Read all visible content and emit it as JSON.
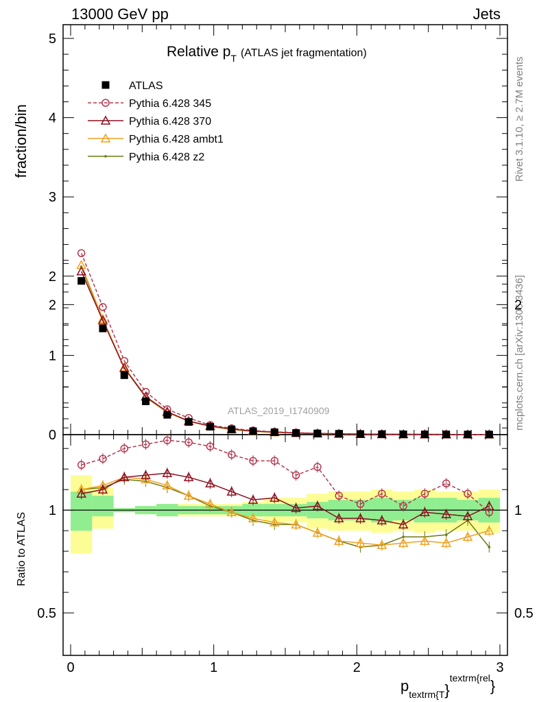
{
  "header": {
    "left": "13000 GeV pp",
    "right": "Jets"
  },
  "side_text": {
    "top": "Rivet 3.1.10, ≥ 2.7M events",
    "bottom": "mcplots.cern.ch [arXiv:1306.3436]"
  },
  "chart_data": {
    "type": "line",
    "title_main": "Relative p",
    "title_sub": "T",
    "title_rest": "(ATLAS jet fragmentation)",
    "watermark": "ATLAS_2019_I1740909",
    "ylabel": "fraction/bin",
    "ratio_ylabel": "Ratio to ATLAS",
    "xlabel_base": "p",
    "xlabel_sub": "textrm{T",
    "xlabel_brace": "}",
    "xlabel_sup": "textrm{rel",
    "xlabel_close": "}",
    "xlim": [
      0,
      3
    ],
    "ylim": [
      0,
      5.1
    ],
    "ratio_ylim": [
      0.3,
      2.3
    ],
    "x_ticks": [
      "0",
      "1",
      "2",
      "3"
    ],
    "y_ticks": [
      "0",
      "1",
      "2",
      "3",
      "4",
      "5"
    ],
    "ratio_ticks": [
      "0.5",
      "1",
      "2"
    ],
    "x": [
      0.075,
      0.225,
      0.375,
      0.525,
      0.675,
      0.825,
      0.975,
      1.125,
      1.275,
      1.425,
      1.575,
      1.725,
      1.875,
      2.025,
      2.175,
      2.325,
      2.475,
      2.625,
      2.775,
      2.925
    ],
    "series": [
      {
        "name": "ATLAS",
        "color": "#000000",
        "marker": "square",
        "values": [
          1.94,
          1.34,
          0.75,
          0.42,
          0.25,
          0.16,
          0.1,
          0.065,
          0.043,
          0.03,
          0.021,
          0.015,
          0.011,
          0.008,
          0.006,
          0.0045,
          0.0035,
          0.0028,
          0.0022,
          0.0018
        ],
        "ratio": [
          1,
          1,
          1,
          1,
          1,
          1,
          1,
          1,
          1,
          1,
          1,
          1,
          1,
          1,
          1,
          1,
          1,
          1,
          1,
          1
        ]
      },
      {
        "name": "Pythia 6.428 345",
        "color": "#b5364e",
        "marker": "circle",
        "dash": true,
        "values": [
          2.29,
          1.61,
          0.93,
          0.54,
          0.32,
          0.21,
          0.12,
          0.08,
          0.052,
          0.036,
          0.025,
          0.018,
          0.012,
          0.0085,
          0.0066,
          0.0047,
          0.0038,
          0.0032,
          0.0024,
          0.0018
        ],
        "ratio": [
          1.22,
          1.25,
          1.3,
          1.32,
          1.34,
          1.33,
          1.31,
          1.27,
          1.24,
          1.24,
          1.17,
          1.21,
          1.07,
          1.03,
          1.08,
          1.02,
          1.08,
          1.13,
          1.08,
          0.99
        ]
      },
      {
        "name": "Pythia 6.428 370",
        "color": "#8b0d1f",
        "marker": "triangle",
        "values": [
          2.06,
          1.44,
          0.84,
          0.48,
          0.29,
          0.17,
          0.11,
          0.07,
          0.045,
          0.032,
          0.021,
          0.015,
          0.0105,
          0.0077,
          0.0057,
          0.0042,
          0.0034,
          0.0027,
          0.0021,
          0.0018
        ],
        "ratio": [
          1.08,
          1.1,
          1.16,
          1.17,
          1.18,
          1.16,
          1.13,
          1.09,
          1.05,
          1.06,
          1.01,
          1.02,
          0.96,
          0.96,
          0.95,
          0.93,
          0.99,
          0.98,
          0.97,
          1.02
        ]
      },
      {
        "name": "Pythia 6.428 ambt1",
        "color": "#f0a020",
        "marker": "triangle",
        "values": [
          2.14,
          1.46,
          0.85,
          0.48,
          0.28,
          0.17,
          0.105,
          0.065,
          0.042,
          0.029,
          0.019,
          0.013,
          0.0095,
          0.0068,
          0.005,
          0.0038,
          0.003,
          0.0023,
          0.0019,
          0.0016
        ],
        "ratio": [
          1.1,
          1.12,
          1.16,
          1.15,
          1.12,
          1.07,
          1.03,
          0.99,
          0.96,
          0.94,
          0.93,
          0.89,
          0.85,
          0.84,
          0.83,
          0.84,
          0.85,
          0.84,
          0.87,
          0.9
        ]
      },
      {
        "name": "Pythia 6.428 z2",
        "color": "#6b7a10",
        "marker": "dot",
        "values": [
          2.12,
          1.45,
          0.84,
          0.47,
          0.28,
          0.17,
          0.104,
          0.064,
          0.041,
          0.028,
          0.019,
          0.013,
          0.0093,
          0.0066,
          0.005,
          0.0038,
          0.003,
          0.0025,
          0.0021,
          0.0015
        ],
        "ratio": [
          1.1,
          1.11,
          1.15,
          1.14,
          1.11,
          1.07,
          1.02,
          0.99,
          0.95,
          0.93,
          0.93,
          0.89,
          0.85,
          0.82,
          0.83,
          0.87,
          0.87,
          0.88,
          0.95,
          0.82
        ]
      }
    ],
    "ratio_band_inner": [
      [
        0.9,
        1.09
      ],
      [
        0.97,
        1.07
      ],
      [
        0.99,
        1.01
      ],
      [
        0.98,
        1.02
      ],
      [
        0.97,
        1.03
      ],
      [
        0.98,
        1.02
      ],
      [
        0.98,
        1.02
      ],
      [
        0.98,
        1.02
      ],
      [
        0.97,
        1.03
      ],
      [
        0.97,
        1.03
      ],
      [
        0.97,
        1.03
      ],
      [
        0.96,
        1.04
      ],
      [
        0.95,
        1.05
      ],
      [
        0.95,
        1.05
      ],
      [
        0.94,
        1.06
      ],
      [
        0.95,
        1.05
      ],
      [
        0.94,
        1.06
      ],
      [
        0.94,
        1.06
      ],
      [
        0.95,
        1.05
      ],
      [
        0.94,
        1.06
      ]
    ],
    "ratio_band_outer": [
      [
        0.79,
        1.17
      ],
      [
        0.91,
        1.11
      ],
      [
        0.99,
        1.01
      ],
      [
        0.98,
        1.02
      ],
      [
        0.97,
        1.03
      ],
      [
        0.97,
        1.03
      ],
      [
        0.97,
        1.03
      ],
      [
        0.97,
        1.03
      ],
      [
        0.96,
        1.04
      ],
      [
        0.94,
        1.06
      ],
      [
        0.94,
        1.06
      ],
      [
        0.91,
        1.08
      ],
      [
        0.9,
        1.09
      ],
      [
        0.9,
        1.09
      ],
      [
        0.89,
        1.1
      ],
      [
        0.9,
        1.09
      ],
      [
        0.89,
        1.1
      ],
      [
        0.9,
        1.09
      ],
      [
        0.9,
        1.09
      ],
      [
        0.89,
        1.1
      ]
    ],
    "band_colors": {
      "inner": "#90ee90",
      "outer": "#fdfd96"
    },
    "legend_position": "top-left"
  }
}
